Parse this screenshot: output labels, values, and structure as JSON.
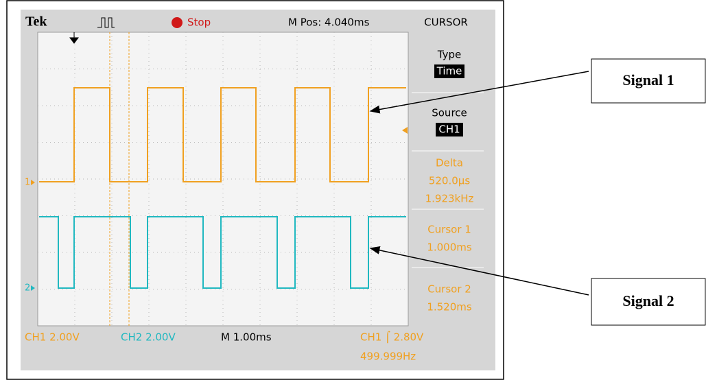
{
  "header": {
    "brand": "Tek",
    "state": "Stop",
    "position": "M Pos: 4.040ms"
  },
  "panel": {
    "title": "CURSOR",
    "items": [
      {
        "label": "Type",
        "value": "Time"
      },
      {
        "label": "Source",
        "value": "CH1"
      },
      {
        "label": "Delta",
        "lines": [
          "520.0µs",
          "1.923kHz"
        ]
      },
      {
        "label": "Cursor 1",
        "lines": [
          "1.000ms"
        ]
      },
      {
        "label": "Cursor 2",
        "lines": [
          "1.520ms"
        ]
      }
    ]
  },
  "markers": {
    "ch1": "1",
    "ch2": "2"
  },
  "footer": {
    "ch1": "CH1  2.00V",
    "ch2": "CH2  2.00V",
    "timebase": "M 1.00ms",
    "trigger": "CH1 ⌠ 2.80V",
    "frequency": "499.999Hz"
  },
  "annotations": [
    "Signal 1",
    "Signal 2"
  ]
}
